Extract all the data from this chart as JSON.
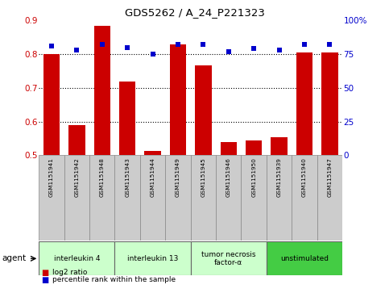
{
  "title": "GDS5262 / A_24_P221323",
  "samples": [
    "GSM1151941",
    "GSM1151942",
    "GSM1151948",
    "GSM1151943",
    "GSM1151944",
    "GSM1151949",
    "GSM1151945",
    "GSM1151946",
    "GSM1151950",
    "GSM1151939",
    "GSM1151940",
    "GSM1151947"
  ],
  "log2_ratio": [
    0.8,
    0.59,
    0.884,
    0.72,
    0.512,
    0.83,
    0.768,
    0.54,
    0.545,
    0.553,
    0.805,
    0.805
  ],
  "percentile_rank": [
    81,
    78,
    82,
    80,
    75,
    82,
    82,
    77,
    79,
    78,
    82,
    82
  ],
  "bar_color": "#cc0000",
  "dot_color": "#0000cc",
  "ylim_left": [
    0.5,
    0.9
  ],
  "ylim_right": [
    0,
    100
  ],
  "yticks_left": [
    0.5,
    0.6,
    0.7,
    0.8,
    0.9
  ],
  "yticks_right": [
    0,
    25,
    50,
    75,
    100
  ],
  "ytick_labels_right": [
    "0",
    "25",
    "50",
    "75",
    "100%"
  ],
  "hlines": [
    0.6,
    0.7,
    0.8
  ],
  "agent_groups": [
    {
      "label": "interleukin 4",
      "start": 0,
      "end": 3,
      "color": "#ccffcc"
    },
    {
      "label": "interleukin 13",
      "start": 3,
      "end": 6,
      "color": "#ccffcc"
    },
    {
      "label": "tumor necrosis\nfactor-α",
      "start": 6,
      "end": 9,
      "color": "#ccffcc"
    },
    {
      "label": "unstimulated",
      "start": 9,
      "end": 12,
      "color": "#44cc44"
    }
  ],
  "legend_bar_label": "log2 ratio",
  "legend_dot_label": "percentile rank within the sample",
  "agent_label": "agent",
  "sample_bg": "#cccccc",
  "plot_bg": "#ffffff",
  "bar_bottom": 0.5
}
